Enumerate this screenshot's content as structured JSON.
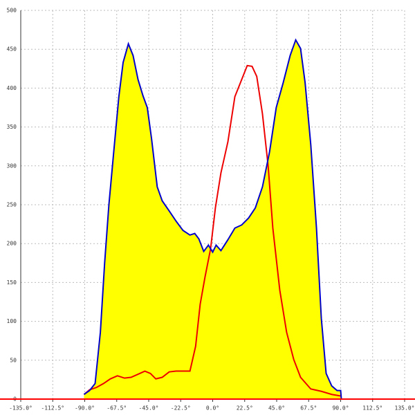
{
  "chart_data": {
    "type": "area",
    "xlim": [
      -135,
      135
    ],
    "xticks": [
      {
        "value": -135,
        "label": "-135.0°"
      },
      {
        "value": -112.5,
        "label": "-112.5°"
      },
      {
        "value": -90,
        "label": "-90.0°"
      },
      {
        "value": -67.5,
        "label": "-67.5°"
      },
      {
        "value": -45,
        "label": "-45.0°"
      },
      {
        "value": -22.5,
        "label": "-22.5°"
      },
      {
        "value": 0,
        "label": "0.0°"
      },
      {
        "value": 22.5,
        "label": "22.5°"
      },
      {
        "value": 45,
        "label": "45.0°"
      },
      {
        "value": 67.5,
        "label": "67.5°"
      },
      {
        "value": 90,
        "label": "90.0°"
      },
      {
        "value": 112.5,
        "label": "112.5°"
      },
      {
        "value": 135,
        "label": "135.0°"
      }
    ],
    "ylim": [
      0,
      500
    ],
    "yticks": [
      0,
      50,
      100,
      150,
      200,
      250,
      300,
      350,
      400,
      450,
      500
    ],
    "grid": true,
    "axis_color": "#ff0000",
    "series": [
      {
        "color": "#0000cc",
        "fill": "#ffff00",
        "x": [
          -90.5,
          -86.6,
          -82.7,
          -79,
          -76,
          -73,
          -69.6,
          -66,
          -63,
          -59.3,
          -56,
          -52.5,
          -49,
          -46,
          -43,
          -39,
          -35.5,
          -30.6,
          -25.8,
          -20.9,
          -16,
          -12.6,
          -9.7,
          -6.3,
          -3,
          0,
          2.4,
          5.8,
          10.7,
          15.6,
          20.4,
          25.3,
          30,
          35,
          40,
          44.7,
          49.6,
          54.5,
          58.4,
          61.8,
          65,
          69,
          73,
          76.4,
          79.8,
          83.7,
          87.5,
          90,
          90.5
        ],
        "values": [
          6,
          11,
          20,
          86,
          175,
          250,
          318,
          389,
          433,
          457,
          442,
          411,
          390,
          375,
          335,
          273,
          255,
          242,
          229,
          217,
          211,
          213,
          206,
          190,
          198,
          189,
          198,
          191,
          205,
          220,
          224,
          233,
          246,
          273,
          318,
          375,
          407,
          442,
          462,
          451,
          407,
          327,
          220,
          104,
          33,
          17,
          11,
          11,
          0
        ]
      },
      {
        "color": "#ee0000",
        "x": [
          -90.5,
          -86.6,
          -81.7,
          -76.8,
          -72,
          -67,
          -62,
          -57.4,
          -52.5,
          -47.7,
          -43.8,
          -40,
          -35.5,
          -30.6,
          -25.8,
          -20.9,
          -16,
          -12,
          -8.8,
          -5.4,
          -1.5,
          1.9,
          5.8,
          10.7,
          15.6,
          20.4,
          24.3,
          27.7,
          31,
          35,
          39,
          42.3,
          47.2,
          52,
          57,
          61.8,
          69,
          76.4,
          83.7,
          90
        ],
        "values": [
          6,
          12,
          15,
          20,
          26,
          30,
          27,
          28,
          32,
          36,
          33,
          26,
          28,
          35,
          36,
          36,
          36,
          68,
          122,
          157,
          193,
          246,
          291,
          331,
          389,
          411,
          429,
          428,
          415,
          367,
          300,
          220,
          140,
          86,
          51,
          28,
          13,
          10,
          6,
          4
        ]
      }
    ]
  }
}
